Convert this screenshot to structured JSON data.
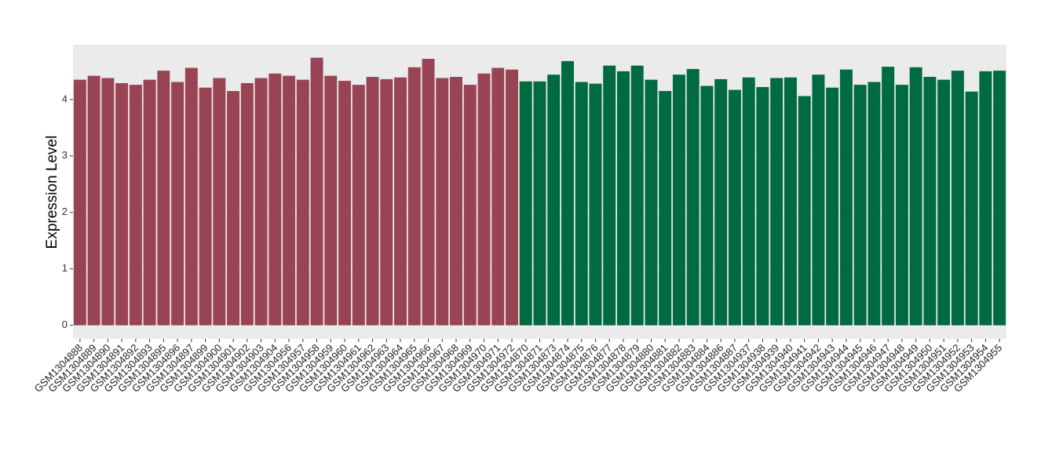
{
  "chart_data": {
    "type": "bar",
    "y_label": "Expression Level",
    "ylim": [
      -0.24,
      4.97
    ],
    "yticks": [
      0,
      1,
      2,
      3,
      4
    ],
    "grid": true,
    "series": [
      {
        "color": "#994455",
        "categories": [
          "GSM1304888",
          "GSM1304889",
          "GSM1304890",
          "GSM1304891",
          "GSM1304892",
          "GSM1304893",
          "GSM1304895",
          "GSM1304896",
          "GSM1304897",
          "GSM1304899",
          "GSM1304900",
          "GSM1304901",
          "GSM1304902",
          "GSM1304903",
          "GSM1304904",
          "GSM1304956",
          "GSM1304957",
          "GSM1304958",
          "GSM1304959",
          "GSM1304960",
          "GSM1304961",
          "GSM1304962",
          "GSM1304963",
          "GSM1304964",
          "GSM1304965",
          "GSM1304966",
          "GSM1304967",
          "GSM1304968",
          "GSM1304969",
          "GSM1304970",
          "GSM1304971",
          "GSM1304972"
        ],
        "values": [
          4.35,
          4.42,
          4.38,
          4.29,
          4.26,
          4.35,
          4.51,
          4.31,
          4.56,
          4.21,
          4.38,
          4.15,
          4.29,
          4.38,
          4.46,
          4.42,
          4.35,
          4.74,
          4.42,
          4.33,
          4.26,
          4.4,
          4.36,
          4.39,
          4.57,
          4.72,
          4.38,
          4.4,
          4.26,
          4.46,
          4.56,
          4.53
        ]
      },
      {
        "color": "#006a40",
        "categories": [
          "GSM1304870",
          "GSM1304871",
          "GSM1304873",
          "GSM1304874",
          "GSM1304875",
          "GSM1304876",
          "GSM1304877",
          "GSM1304878",
          "GSM1304879",
          "GSM1304880",
          "GSM1304881",
          "GSM1304882",
          "GSM1304883",
          "GSM1304884",
          "GSM1304886",
          "GSM1304887",
          "GSM1304937",
          "GSM1304938",
          "GSM1304939",
          "GSM1304940",
          "GSM1304941",
          "GSM1304942",
          "GSM1304943",
          "GSM1304944",
          "GSM1304945",
          "GSM1304946",
          "GSM1304947",
          "GSM1304948",
          "GSM1304949",
          "GSM1304950",
          "GSM1304951",
          "GSM1304952",
          "GSM1304953",
          "GSM1304954",
          "GSM1304955"
        ],
        "values": [
          4.32,
          4.32,
          4.44,
          4.68,
          4.31,
          4.28,
          4.6,
          4.5,
          4.6,
          4.35,
          4.15,
          4.44,
          4.54,
          4.24,
          4.36,
          4.17,
          4.39,
          4.22,
          4.38,
          4.39,
          4.06,
          4.44,
          4.21,
          4.53,
          4.26,
          4.31,
          4.58,
          4.26,
          4.57,
          4.4,
          4.35,
          4.51,
          4.14,
          4.5,
          4.51
        ]
      }
    ]
  }
}
